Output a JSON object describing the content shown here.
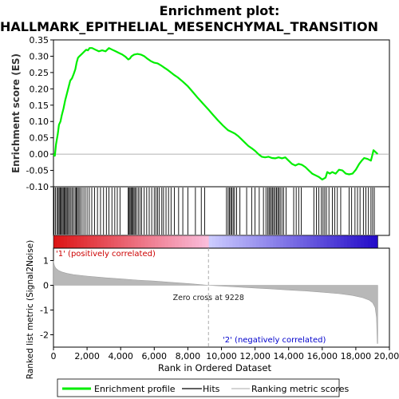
{
  "chart_data": {
    "type": "line",
    "title_line1": "Enrichment plot:",
    "title_line2": "HALLMARK_EPITHELIAL_MESENCHYMAL_TRANSITION",
    "xlabel": "Rank in Ordered Dataset",
    "x_ticks": [
      0,
      2000,
      4000,
      6000,
      8000,
      10000,
      12000,
      14000,
      16000,
      18000,
      20000
    ],
    "x_tick_labels": [
      "0",
      "2,000",
      "4,000",
      "6,000",
      "8,000",
      "10,000",
      "12,000",
      "14,000",
      "16,000",
      "18,000",
      "20,000"
    ],
    "xlim": [
      0,
      20000
    ],
    "n_genes": 19300,
    "es_panel": {
      "ylabel": "Enrichment score (ES)",
      "ylim": [
        -0.1,
        0.35
      ],
      "y_ticks": [
        -0.1,
        -0.05,
        0.0,
        0.05,
        0.1,
        0.15,
        0.2,
        0.25,
        0.3,
        0.35
      ],
      "y_tick_labels": [
        "-0.10",
        "-0.05",
        "0.00",
        "0.05",
        "0.10",
        "0.15",
        "0.20",
        "0.25",
        "0.30",
        "0.35"
      ],
      "color": "#00ee00",
      "profile": [
        [
          0,
          0.0
        ],
        [
          80,
          -0.005
        ],
        [
          150,
          0.03
        ],
        [
          250,
          0.06
        ],
        [
          330,
          0.09
        ],
        [
          420,
          0.1
        ],
        [
          500,
          0.12
        ],
        [
          600,
          0.14
        ],
        [
          700,
          0.165
        ],
        [
          800,
          0.185
        ],
        [
          900,
          0.205
        ],
        [
          1000,
          0.225
        ],
        [
          1100,
          0.232
        ],
        [
          1200,
          0.245
        ],
        [
          1300,
          0.26
        ],
        [
          1380,
          0.28
        ],
        [
          1460,
          0.295
        ],
        [
          1550,
          0.3
        ],
        [
          1650,
          0.305
        ],
        [
          1750,
          0.31
        ],
        [
          1850,
          0.315
        ],
        [
          1950,
          0.32
        ],
        [
          2050,
          0.318
        ],
        [
          2150,
          0.325
        ],
        [
          2300,
          0.325
        ],
        [
          2500,
          0.32
        ],
        [
          2700,
          0.315
        ],
        [
          2900,
          0.318
        ],
        [
          3100,
          0.315
        ],
        [
          3300,
          0.325
        ],
        [
          3500,
          0.32
        ],
        [
          3700,
          0.315
        ],
        [
          3900,
          0.31
        ],
        [
          4100,
          0.305
        ],
        [
          4300,
          0.298
        ],
        [
          4450,
          0.29
        ],
        [
          4550,
          0.293
        ],
        [
          4650,
          0.3
        ],
        [
          4800,
          0.305
        ],
        [
          5000,
          0.307
        ],
        [
          5200,
          0.305
        ],
        [
          5400,
          0.3
        ],
        [
          5600,
          0.292
        ],
        [
          5800,
          0.285
        ],
        [
          6000,
          0.28
        ],
        [
          6200,
          0.278
        ],
        [
          6400,
          0.272
        ],
        [
          6600,
          0.265
        ],
        [
          6800,
          0.258
        ],
        [
          7000,
          0.25
        ],
        [
          7200,
          0.242
        ],
        [
          7400,
          0.235
        ],
        [
          7700,
          0.222
        ],
        [
          8000,
          0.208
        ],
        [
          8300,
          0.19
        ],
        [
          8600,
          0.172
        ],
        [
          8900,
          0.155
        ],
        [
          9200,
          0.138
        ],
        [
          9500,
          0.12
        ],
        [
          9800,
          0.103
        ],
        [
          10100,
          0.087
        ],
        [
          10400,
          0.073
        ],
        [
          10600,
          0.068
        ],
        [
          10800,
          0.063
        ],
        [
          11000,
          0.055
        ],
        [
          11200,
          0.045
        ],
        [
          11400,
          0.035
        ],
        [
          11600,
          0.025
        ],
        [
          11800,
          0.018
        ],
        [
          12000,
          0.01
        ],
        [
          12200,
          0.0
        ],
        [
          12400,
          -0.008
        ],
        [
          12600,
          -0.01
        ],
        [
          12800,
          -0.008
        ],
        [
          13000,
          -0.012
        ],
        [
          13200,
          -0.013
        ],
        [
          13400,
          -0.01
        ],
        [
          13600,
          -0.013
        ],
        [
          13800,
          -0.01
        ],
        [
          14000,
          -0.02
        ],
        [
          14200,
          -0.03
        ],
        [
          14400,
          -0.035
        ],
        [
          14600,
          -0.03
        ],
        [
          14800,
          -0.033
        ],
        [
          15000,
          -0.04
        ],
        [
          15200,
          -0.05
        ],
        [
          15400,
          -0.06
        ],
        [
          15600,
          -0.065
        ],
        [
          15800,
          -0.07
        ],
        [
          16000,
          -0.078
        ],
        [
          16200,
          -0.072
        ],
        [
          16300,
          -0.055
        ],
        [
          16450,
          -0.06
        ],
        [
          16600,
          -0.055
        ],
        [
          16800,
          -0.06
        ],
        [
          17000,
          -0.048
        ],
        [
          17200,
          -0.05
        ],
        [
          17400,
          -0.06
        ],
        [
          17600,
          -0.062
        ],
        [
          17800,
          -0.06
        ],
        [
          18000,
          -0.048
        ],
        [
          18200,
          -0.03
        ],
        [
          18350,
          -0.02
        ],
        [
          18500,
          -0.012
        ],
        [
          18700,
          -0.015
        ],
        [
          18900,
          -0.02
        ],
        [
          19000,
          0.0
        ],
        [
          19050,
          0.012
        ],
        [
          19200,
          0.005
        ],
        [
          19300,
          0.0
        ]
      ]
    },
    "hits_panel": {
      "legend_label": "Hits",
      "hit_ranks": [
        35,
        120,
        210,
        280,
        340,
        400,
        460,
        520,
        580,
        640,
        700,
        760,
        820,
        890,
        960,
        1040,
        1120,
        1200,
        1290,
        1350,
        1410,
        1480,
        1560,
        1650,
        1760,
        1880,
        2000,
        2130,
        2280,
        2450,
        2620,
        2800,
        2980,
        3150,
        3300,
        3480,
        3650,
        3800,
        3960,
        4450,
        4500,
        4560,
        4620,
        4680,
        4740,
        4800,
        4870,
        4950,
        5050,
        5150,
        5250,
        5400,
        5550,
        5700,
        5850,
        6000,
        6100,
        6200,
        6300,
        6450,
        6550,
        6700,
        6850,
        7000,
        7200,
        7450,
        7700,
        8000,
        8450,
        8800,
        9000,
        10300,
        10400,
        10480,
        10550,
        10620,
        10700,
        10780,
        10900,
        11100,
        11500,
        11800,
        12000,
        12250,
        12500,
        12650,
        12750,
        12830,
        12900,
        12980,
        13050,
        13120,
        13200,
        13280,
        13350,
        13420,
        13500,
        13600,
        13700,
        13850,
        14300,
        14450,
        14600,
        14750,
        15500,
        15650,
        15800,
        15950,
        16050,
        16150,
        16250,
        16400,
        16600,
        16750,
        16900,
        17100,
        17600,
        17750,
        17950,
        18100,
        18250,
        18450,
        18600,
        18750,
        18900,
        19000,
        19100
      ]
    },
    "color_bar": {
      "positive_color": "#dd1111",
      "neutral_color": "#ccccff",
      "negative_color": "#2200cc"
    },
    "metric_panel": {
      "ylabel": "Ranked list metric (Signal2Noise)",
      "ylim": [
        -2.5,
        1.5
      ],
      "y_ticks": [
        -2,
        -1,
        0,
        1
      ],
      "y_tick_labels": [
        "-2",
        "-1",
        "0",
        "1"
      ],
      "zero_cross_rank": 9228,
      "zero_cross_label": "Zero cross at 9228",
      "pos_label": "'1' (positively correlated)",
      "neg_label": "'2' (negatively correlated)",
      "curve": [
        [
          0,
          1.0
        ],
        [
          20,
          0.9
        ],
        [
          60,
          0.78
        ],
        [
          150,
          0.68
        ],
        [
          300,
          0.6
        ],
        [
          500,
          0.54
        ],
        [
          800,
          0.48
        ],
        [
          1200,
          0.43
        ],
        [
          2000,
          0.37
        ],
        [
          3000,
          0.31
        ],
        [
          4000,
          0.26
        ],
        [
          5000,
          0.21
        ],
        [
          6000,
          0.17
        ],
        [
          7000,
          0.12
        ],
        [
          8000,
          0.07
        ],
        [
          9228,
          0.0
        ],
        [
          10000,
          -0.03
        ],
        [
          11000,
          -0.07
        ],
        [
          12000,
          -0.11
        ],
        [
          13000,
          -0.15
        ],
        [
          14000,
          -0.19
        ],
        [
          15000,
          -0.23
        ],
        [
          16000,
          -0.28
        ],
        [
          17000,
          -0.34
        ],
        [
          17800,
          -0.41
        ],
        [
          18400,
          -0.5
        ],
        [
          18800,
          -0.6
        ],
        [
          19000,
          -0.7
        ],
        [
          19150,
          -0.9
        ],
        [
          19230,
          -1.3
        ],
        [
          19280,
          -2.35
        ],
        [
          19300,
          -2.35
        ]
      ]
    },
    "legend": {
      "items": [
        "Enrichment profile",
        "Hits",
        "Ranking metric scores"
      ]
    }
  }
}
